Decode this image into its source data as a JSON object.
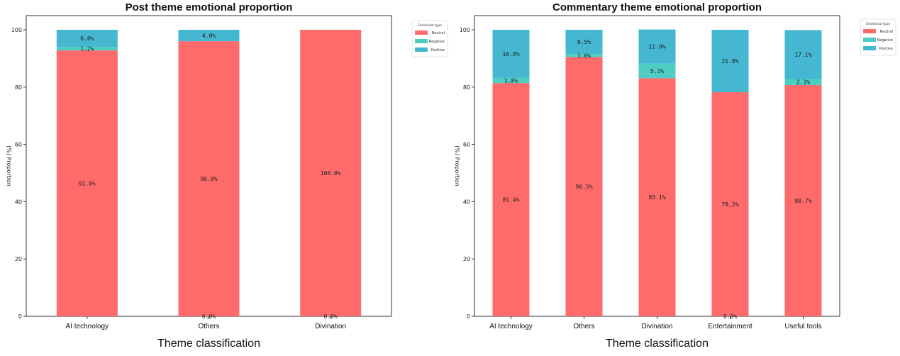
{
  "colors": {
    "Neutral": "#FF6B6B",
    "Negative": "#4ECDC4",
    "Positive": "#45B7D1"
  },
  "chart_data": [
    {
      "type": "bar",
      "stacked": true,
      "title": "Post theme emotional proportion",
      "xlabel": "Theme classification",
      "ylabel": "(%) Proportion",
      "ylim": [
        0,
        105
      ],
      "yticks": [
        0,
        20,
        40,
        60,
        80,
        100
      ],
      "categories": [
        "AI technology",
        "Others",
        "Divination"
      ],
      "series": [
        {
          "name": "Neutral",
          "values": [
            92.8,
            96.0,
            100.0
          ]
        },
        {
          "name": "Negative",
          "values": [
            1.2,
            0.0,
            0.0
          ]
        },
        {
          "name": "Positive",
          "values": [
            6.0,
            4.0,
            0.0
          ]
        }
      ],
      "data_labels": [
        {
          "category": "AI technology",
          "series": "Neutral",
          "text": "92.8%"
        },
        {
          "category": "AI technology",
          "series": "Negative",
          "text": "1.2%"
        },
        {
          "category": "AI technology",
          "series": "Positive",
          "text": "6.0%"
        },
        {
          "category": "Others",
          "series": "Neutral",
          "text": "96.0%"
        },
        {
          "category": "Others",
          "series": "Negative",
          "text": "0.0%"
        },
        {
          "category": "Others",
          "series": "Positive",
          "text": "4.0%"
        },
        {
          "category": "Divination",
          "series": "Neutral",
          "text": "100.0%"
        },
        {
          "category": "Divination",
          "series": "Negative",
          "text": "0.0%"
        }
      ],
      "legend": {
        "title": "Emotional type",
        "entries": [
          "Neutral",
          "Negative",
          "Positive"
        ],
        "placement": "outside-top-right"
      },
      "grid": false
    },
    {
      "type": "bar",
      "stacked": true,
      "title": "Commentary theme emotional proportion",
      "xlabel": "Theme classification",
      "ylabel": "(%) Proportion",
      "ylim": [
        0,
        105
      ],
      "yticks": [
        0,
        20,
        40,
        60,
        80,
        100
      ],
      "categories": [
        "AI technology",
        "Others",
        "Divination",
        "Entertainment",
        "Useful tools"
      ],
      "series": [
        {
          "name": "Neutral",
          "values": [
            81.4,
            90.5,
            83.1,
            78.2,
            80.7
          ]
        },
        {
          "name": "Negative",
          "values": [
            1.8,
            1.0,
            5.1,
            0.0,
            2.1
          ]
        },
        {
          "name": "Positive",
          "values": [
            16.8,
            8.5,
            11.9,
            21.8,
            17.1
          ]
        }
      ],
      "data_labels": [
        {
          "category": "AI technology",
          "series": "Neutral",
          "text": "81.4%"
        },
        {
          "category": "AI technology",
          "series": "Negative",
          "text": "1.8%"
        },
        {
          "category": "AI technology",
          "series": "Positive",
          "text": "16.8%"
        },
        {
          "category": "Others",
          "series": "Neutral",
          "text": "90.5%"
        },
        {
          "category": "Others",
          "series": "Negative",
          "text": "1.0%"
        },
        {
          "category": "Others",
          "series": "Positive",
          "text": "8.5%"
        },
        {
          "category": "Divination",
          "series": "Neutral",
          "text": "83.1%"
        },
        {
          "category": "Divination",
          "series": "Negative",
          "text": "5.1%"
        },
        {
          "category": "Divination",
          "series": "Positive",
          "text": "11.9%"
        },
        {
          "category": "Entertainment",
          "series": "Neutral",
          "text": "78.2%"
        },
        {
          "category": "Entertainment",
          "series": "Negative",
          "text": "0.0%"
        },
        {
          "category": "Entertainment",
          "series": "Positive",
          "text": "21.8%"
        },
        {
          "category": "Useful tools",
          "series": "Neutral",
          "text": "80.7%"
        },
        {
          "category": "Useful tools",
          "series": "Negative",
          "text": "2.1%"
        },
        {
          "category": "Useful tools",
          "series": "Positive",
          "text": "17.1%"
        }
      ],
      "legend": {
        "title": "Emotional type",
        "entries": [
          "Neutral",
          "Negative",
          "Positive"
        ],
        "placement": "outside-top-right"
      },
      "grid": false
    }
  ]
}
